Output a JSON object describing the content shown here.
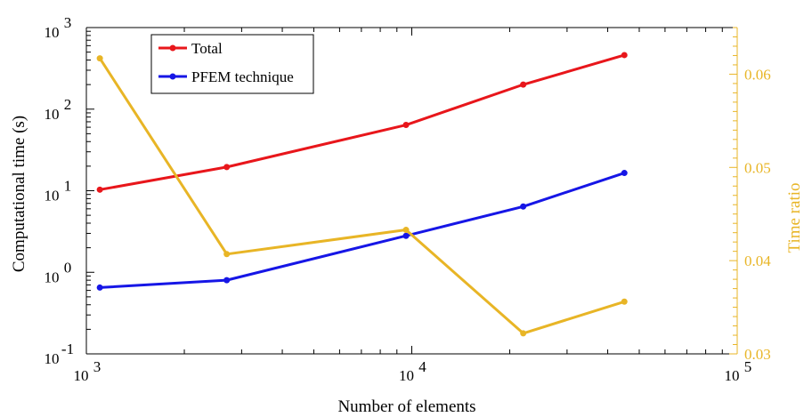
{
  "chart_data": {
    "type": "line",
    "xlabel": "Number of elements",
    "ylabel": "Computational time (s)",
    "y2label": "Time ratio",
    "x_scale": "log",
    "y_scale": "log",
    "xlim": [
      1000,
      100000
    ],
    "ylim": [
      0.1,
      1000
    ],
    "y2lim": [
      0.03,
      0.065
    ],
    "x_ticks": [
      {
        "value": 1000,
        "base": "10",
        "exp": "3"
      },
      {
        "value": 10000,
        "base": "10",
        "exp": "4"
      },
      {
        "value": 100000,
        "base": "10",
        "exp": "5"
      }
    ],
    "y_ticks": [
      {
        "value": 0.1,
        "base": "10",
        "exp": "-1"
      },
      {
        "value": 1,
        "base": "10",
        "exp": "0"
      },
      {
        "value": 10,
        "base": "10",
        "exp": "1"
      },
      {
        "value": 100,
        "base": "10",
        "exp": "2"
      },
      {
        "value": 1000,
        "base": "10",
        "exp": "3"
      }
    ],
    "y2_ticks": [
      "0.03",
      "0.04",
      "0.05",
      "0.06"
    ],
    "x": [
      1100,
      2700,
      9600,
      22000,
      45000
    ],
    "series": [
      {
        "name": "Total",
        "axis": "left",
        "color": "#e8161b",
        "values": [
          10.3,
          19.5,
          64,
          200,
          460
        ]
      },
      {
        "name": "PFEM technique",
        "axis": "left",
        "color": "#1616e6",
        "values": [
          0.65,
          0.8,
          2.8,
          6.4,
          16.5
        ]
      },
      {
        "name": "",
        "axis": "right",
        "color": "#e8b526",
        "values": [
          0.0617,
          0.0407,
          0.0433,
          0.0322,
          0.0356
        ]
      }
    ],
    "legend": {
      "position": "top-left",
      "entries": [
        "Total",
        "PFEM technique"
      ]
    },
    "grid": false
  }
}
